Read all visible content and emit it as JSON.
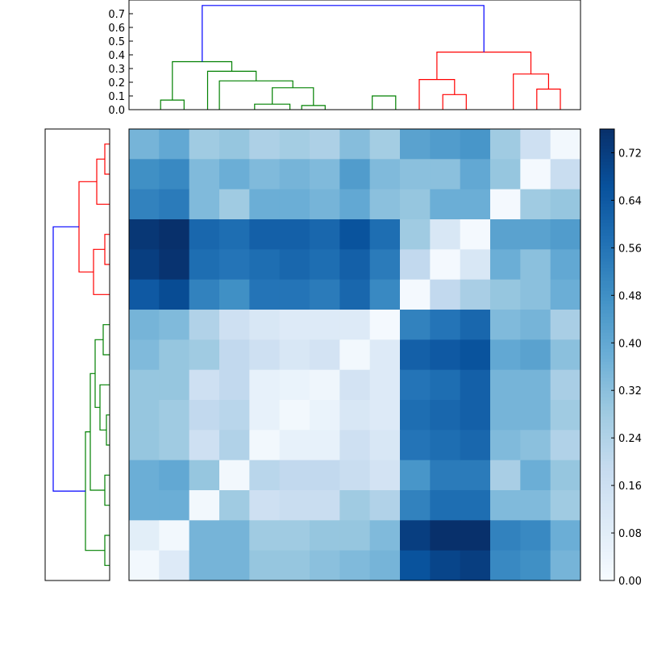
{
  "chart_data": [
    {
      "type": "dendrogram",
      "orientation": "top",
      "title": "",
      "ylim": [
        0,
        0.8
      ],
      "y_ticks": [
        0.0,
        0.1,
        0.2,
        0.3,
        0.4,
        0.5,
        0.6,
        0.7
      ],
      "y_tick_labels": [
        "0.0",
        "0.1",
        "0.2",
        "0.3",
        "0.4",
        "0.5",
        "0.6",
        "0.7"
      ],
      "leaf_count": 15,
      "colors": {
        "cluster_a": "#008000",
        "cluster_b": "#ff0000",
        "root": "#0000ff"
      },
      "links": [
        {
          "x": [
            1.5,
            1.5,
            2.5,
            2.5
          ],
          "y": [
            0,
            0.07,
            0.07,
            0
          ],
          "color": "cluster_a"
        },
        {
          "x": [
            5.5,
            5.5,
            7,
            7
          ],
          "y": [
            0,
            0.04,
            0.04,
            0
          ],
          "color": "cluster_a"
        },
        {
          "x": [
            7.5,
            7.5,
            8.5,
            8.5
          ],
          "y": [
            0,
            0.03,
            0.03,
            0
          ],
          "color": "cluster_a"
        },
        {
          "x": [
            6.25,
            6.25,
            8,
            8
          ],
          "y": [
            0.04,
            0.16,
            0.16,
            0.03
          ],
          "color": "cluster_a"
        },
        {
          "x": [
            10.5,
            10.5,
            11.5,
            11.5
          ],
          "y": [
            0,
            0.1,
            0.1,
            0
          ],
          "color": "cluster_a"
        },
        {
          "x": [
            4,
            4,
            7.125,
            7.125
          ],
          "y": [
            0,
            0.21,
            0.21,
            0.16
          ],
          "color": "cluster_a"
        },
        {
          "x": [
            3.5,
            3.5,
            5.5625,
            5.5625
          ],
          "y": [
            0,
            0.28,
            0.28,
            0.21
          ],
          "color": "cluster_a"
        },
        {
          "x": [
            2,
            2,
            4.53,
            4.53
          ],
          "y": [
            0.07,
            0.35,
            0.35,
            0.28
          ],
          "color": "cluster_a"
        },
        {
          "x": [
            13.5,
            13.5,
            14.5,
            14.5
          ],
          "y": [
            0,
            0.11,
            0.11,
            0
          ],
          "color": "cluster_b"
        },
        {
          "x": [
            12.5,
            12.5,
            14,
            14
          ],
          "y": [
            0,
            0.22,
            0.22,
            0.11
          ],
          "color": "cluster_b"
        },
        {
          "x": [
            17.5,
            17.5,
            18.5,
            18.5
          ],
          "y": [
            0,
            0.15,
            0.15,
            0
          ],
          "color": "cluster_b"
        },
        {
          "x": [
            16.5,
            16.5,
            18,
            18
          ],
          "y": [
            0,
            0.26,
            0.26,
            0.15
          ],
          "color": "cluster_b"
        },
        {
          "x": [
            13.25,
            13.25,
            17.25,
            17.25
          ],
          "y": [
            0.22,
            0.42,
            0.42,
            0.26
          ],
          "color": "cluster_b"
        },
        {
          "x": [
            3.27,
            3.27,
            15.25,
            15.25
          ],
          "y": [
            0.35,
            0.76,
            0.76,
            0.42
          ],
          "color": "root"
        }
      ]
    },
    {
      "type": "dendrogram",
      "orientation": "left",
      "title": "",
      "leaf_count": 15,
      "colors": {
        "cluster_a": "#ff0000",
        "cluster_b": "#008000",
        "root": "#0000ff"
      },
      "links": [
        {
          "y": [
            0.5,
            0.5,
            1.5,
            1.5
          ],
          "x": [
            0,
            0.03,
            0.03,
            0
          ],
          "color": "cluster_a"
        },
        {
          "y": [
            1,
            1,
            2.5,
            2.5
          ],
          "x": [
            0.03,
            0.08,
            0.08,
            0
          ],
          "color": "cluster_a"
        },
        {
          "y": [
            3.5,
            3.5,
            4.5,
            4.5
          ],
          "x": [
            0,
            0.03,
            0.03,
            0
          ],
          "color": "cluster_a"
        },
        {
          "y": [
            4,
            4,
            5.5,
            5.5
          ],
          "x": [
            0.03,
            0.1,
            0.1,
            0
          ],
          "color": "cluster_a"
        },
        {
          "y": [
            1.75,
            1.75,
            4.75,
            4.75
          ],
          "x": [
            0.08,
            0.19,
            0.19,
            0.1
          ],
          "color": "cluster_a"
        },
        {
          "y": [
            6.5,
            6.5,
            7.5,
            7.5
          ],
          "x": [
            0,
            0.04,
            0.04,
            0
          ],
          "color": "cluster_b"
        },
        {
          "y": [
            9.5,
            9.5,
            10.5,
            10.5
          ],
          "x": [
            0,
            0.02,
            0.02,
            0
          ],
          "color": "cluster_b"
        },
        {
          "y": [
            8.5,
            8.5,
            10,
            10
          ],
          "x": [
            0,
            0.06,
            0.06,
            0.02
          ],
          "color": "cluster_b"
        },
        {
          "y": [
            7,
            7,
            9.25,
            9.25
          ],
          "x": [
            0.04,
            0.09,
            0.09,
            0.06
          ],
          "color": "cluster_b"
        },
        {
          "y": [
            11.5,
            11.5,
            12.5,
            12.5
          ],
          "x": [
            0,
            0.03,
            0.03,
            0
          ],
          "color": "cluster_b"
        },
        {
          "y": [
            8.125,
            8.125,
            12,
            12
          ],
          "x": [
            0.09,
            0.12,
            0.12,
            0.03
          ],
          "color": "cluster_b"
        },
        {
          "y": [
            13.5,
            13.5,
            14.5,
            14.5
          ],
          "x": [
            0,
            0.03,
            0.03,
            0
          ],
          "color": "cluster_b"
        },
        {
          "y": [
            10.06,
            10.06,
            14,
            14
          ],
          "x": [
            0.12,
            0.15,
            0.15,
            0.03
          ],
          "color": "cluster_b"
        },
        {
          "y": [
            3.25,
            3.25,
            12.03,
            12.03
          ],
          "x": [
            0.19,
            0.35,
            0.35,
            0.15
          ],
          "color": "root"
        }
      ]
    },
    {
      "type": "heatmap",
      "title": "",
      "rows": 15,
      "cols": 15,
      "vmin": 0.0,
      "vmax": 0.76,
      "colormap": "Blues",
      "values": [
        [
          0.36,
          0.4,
          0.28,
          0.3,
          0.25,
          0.27,
          0.25,
          0.33,
          0.27,
          0.42,
          0.44,
          0.46,
          0.28,
          0.16,
          0.02
        ],
        [
          0.48,
          0.5,
          0.34,
          0.38,
          0.34,
          0.36,
          0.34,
          0.44,
          0.34,
          0.32,
          0.32,
          0.4,
          0.3,
          0.01,
          0.18
        ],
        [
          0.52,
          0.54,
          0.34,
          0.28,
          0.38,
          0.38,
          0.36,
          0.4,
          0.32,
          0.3,
          0.38,
          0.38,
          0.01,
          0.28,
          0.3
        ],
        [
          0.74,
          0.76,
          0.6,
          0.58,
          0.62,
          0.62,
          0.6,
          0.66,
          0.58,
          0.28,
          0.12,
          0.01,
          0.42,
          0.42,
          0.44
        ],
        [
          0.72,
          0.75,
          0.58,
          0.56,
          0.58,
          0.6,
          0.58,
          0.62,
          0.54,
          0.2,
          0.01,
          0.12,
          0.38,
          0.32,
          0.4
        ],
        [
          0.64,
          0.68,
          0.52,
          0.48,
          0.56,
          0.56,
          0.54,
          0.6,
          0.5,
          0.01,
          0.2,
          0.26,
          0.3,
          0.32,
          0.38
        ],
        [
          0.36,
          0.34,
          0.24,
          0.16,
          0.12,
          0.1,
          0.1,
          0.1,
          0.01,
          0.52,
          0.56,
          0.6,
          0.34,
          0.36,
          0.26
        ],
        [
          0.34,
          0.3,
          0.28,
          0.2,
          0.16,
          0.12,
          0.14,
          0.02,
          0.1,
          0.62,
          0.64,
          0.66,
          0.4,
          0.42,
          0.32
        ],
        [
          0.3,
          0.3,
          0.16,
          0.2,
          0.06,
          0.05,
          0.03,
          0.14,
          0.1,
          0.56,
          0.58,
          0.62,
          0.36,
          0.36,
          0.26
        ],
        [
          0.3,
          0.28,
          0.2,
          0.22,
          0.06,
          0.02,
          0.05,
          0.12,
          0.1,
          0.58,
          0.6,
          0.62,
          0.36,
          0.36,
          0.28
        ],
        [
          0.3,
          0.28,
          0.16,
          0.24,
          0.02,
          0.06,
          0.06,
          0.16,
          0.12,
          0.56,
          0.58,
          0.6,
          0.34,
          0.32,
          0.24
        ],
        [
          0.38,
          0.4,
          0.3,
          0.02,
          0.22,
          0.2,
          0.2,
          0.18,
          0.14,
          0.46,
          0.54,
          0.54,
          0.26,
          0.38,
          0.3
        ],
        [
          0.38,
          0.38,
          0.02,
          0.28,
          0.16,
          0.18,
          0.18,
          0.28,
          0.24,
          0.52,
          0.58,
          0.58,
          0.34,
          0.34,
          0.28
        ],
        [
          0.08,
          0.02,
          0.36,
          0.36,
          0.28,
          0.28,
          0.3,
          0.3,
          0.34,
          0.72,
          0.76,
          0.76,
          0.52,
          0.5,
          0.38
        ],
        [
          0.02,
          0.1,
          0.36,
          0.36,
          0.3,
          0.3,
          0.32,
          0.34,
          0.36,
          0.66,
          0.7,
          0.72,
          0.5,
          0.48,
          0.36
        ]
      ]
    },
    {
      "type": "colorbar",
      "title": "",
      "range": [
        0.0,
        0.76
      ],
      "ticks": [
        0.0,
        0.08,
        0.16,
        0.24,
        0.32,
        0.4,
        0.48,
        0.56,
        0.64,
        0.72
      ],
      "tick_labels": [
        "0.00",
        "0.08",
        "0.16",
        "0.24",
        "0.32",
        "0.40",
        "0.48",
        "0.56",
        "0.64",
        "0.72"
      ],
      "colormap": "Blues"
    }
  ]
}
